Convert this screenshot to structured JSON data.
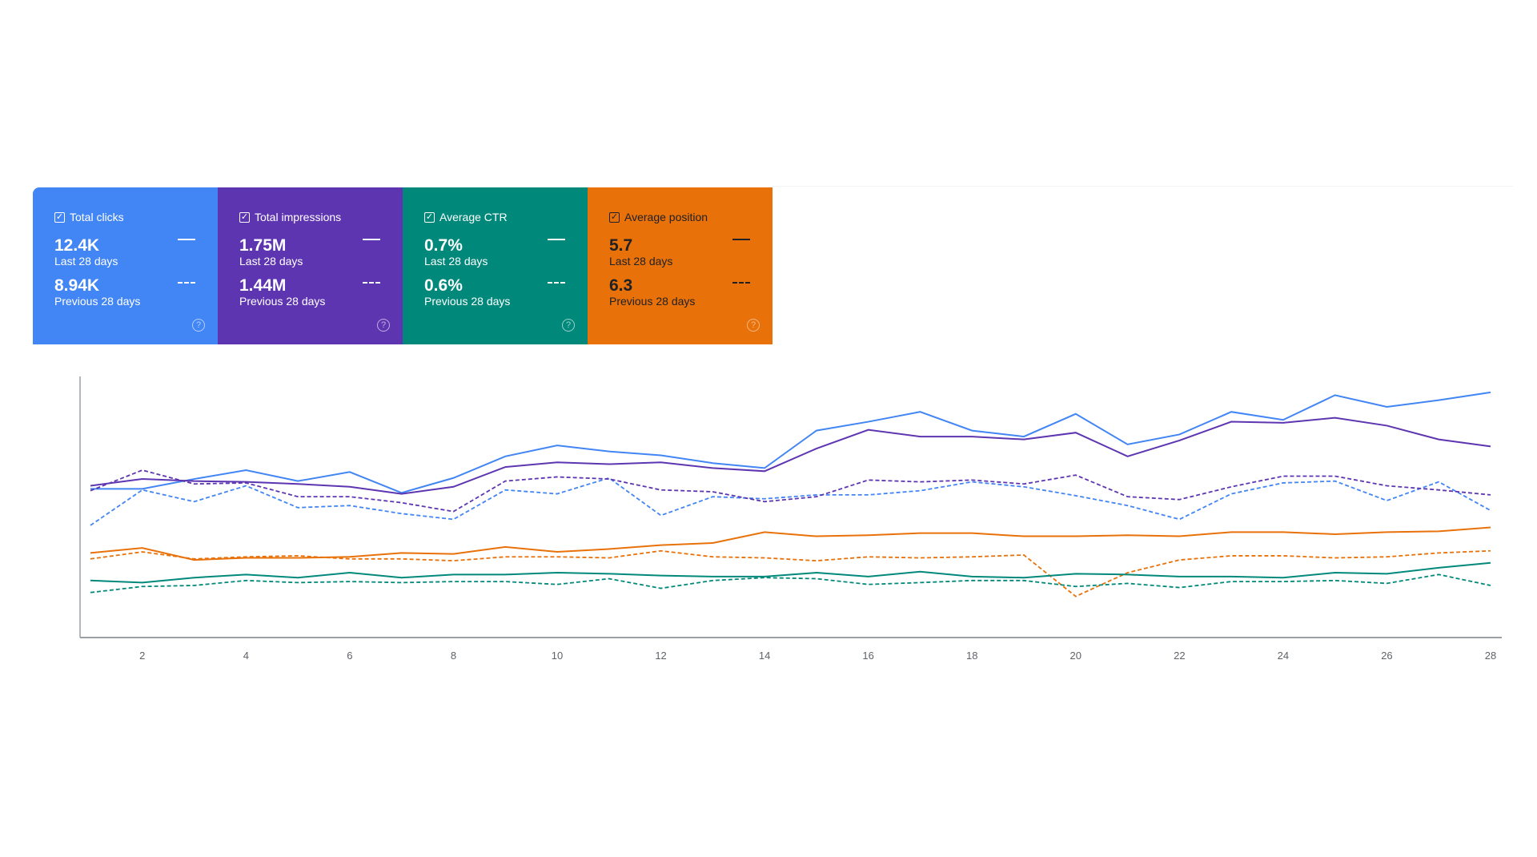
{
  "cards": [
    {
      "label": "Total clicks",
      "current": "12.4K",
      "current_label": "Last 28 days",
      "previous": "8.94K",
      "previous_label": "Previous 28 days",
      "color": "#4285f4",
      "checked": true
    },
    {
      "label": "Total impressions",
      "current": "1.75M",
      "current_label": "Last 28 days",
      "previous": "1.44M",
      "previous_label": "Previous 28 days",
      "color": "#5e35b1",
      "checked": true
    },
    {
      "label": "Average CTR",
      "current": "0.7%",
      "current_label": "Last 28 days",
      "previous": "0.6%",
      "previous_label": "Previous 28 days",
      "color": "#00897b",
      "checked": true
    },
    {
      "label": "Average position",
      "current": "5.7",
      "current_label": "Last 28 days",
      "previous": "6.3",
      "previous_label": "Previous 28 days",
      "color": "#e8710a",
      "checked": true
    }
  ],
  "icons": {
    "checkbox": "checkbox-checked-icon",
    "help": "help-circle-icon"
  },
  "chart_data": {
    "type": "line",
    "x": [
      1,
      2,
      3,
      4,
      5,
      6,
      7,
      8,
      9,
      10,
      11,
      12,
      13,
      14,
      15,
      16,
      17,
      18,
      19,
      20,
      21,
      22,
      23,
      24,
      25,
      26,
      27,
      28
    ],
    "xticks": [
      "2",
      "4",
      "6",
      "8",
      "10",
      "12",
      "14",
      "16",
      "18",
      "20",
      "22",
      "24",
      "26",
      "28"
    ],
    "ylim": [
      0,
      100
    ],
    "y_axis_labels": "none (relative scale)",
    "grid": false,
    "series": [
      {
        "metric": "clicks",
        "period": "current",
        "style": "solid",
        "color": "#4285f4",
        "values": [
          56.8,
          56.8,
          60.6,
          64.0,
          59.8,
          63.3,
          55.3,
          61.0,
          69.3,
          73.5,
          71.2,
          69.7,
          66.7,
          64.8,
          79.2,
          82.6,
          86.4,
          79.2,
          76.9,
          85.6,
          73.9,
          77.7,
          86.4,
          83.3,
          92.8,
          88.3,
          90.9,
          93.9
        ]
      },
      {
        "metric": "impressions",
        "period": "current",
        "style": "solid",
        "color": "#5e35b1",
        "values": [
          58.0,
          60.6,
          59.8,
          59.5,
          58.7,
          57.6,
          54.9,
          57.6,
          65.2,
          67.0,
          66.3,
          67.0,
          64.8,
          63.6,
          72.3,
          79.5,
          76.9,
          76.9,
          75.8,
          78.4,
          69.3,
          75.4,
          82.6,
          82.2,
          84.1,
          81.1,
          75.8,
          73.1
        ]
      },
      {
        "metric": "clicks",
        "period": "previous",
        "style": "dashed",
        "color": "#4285f4",
        "values": [
          42.8,
          56.4,
          51.9,
          58.0,
          49.6,
          50.4,
          47.3,
          45.1,
          56.4,
          54.9,
          61.0,
          46.6,
          53.8,
          53.0,
          54.5,
          54.5,
          56.1,
          59.5,
          57.6,
          54.2,
          50.4,
          45.1,
          54.9,
          59.1,
          59.8,
          52.3,
          59.5,
          48.5
        ]
      },
      {
        "metric": "impressions",
        "period": "previous",
        "style": "dashed",
        "color": "#5e35b1",
        "values": [
          56.1,
          64.0,
          58.7,
          59.1,
          53.8,
          53.8,
          51.5,
          48.1,
          59.8,
          61.4,
          60.6,
          56.4,
          55.7,
          51.9,
          53.8,
          60.2,
          59.5,
          60.2,
          58.7,
          62.1,
          53.8,
          52.7,
          57.6,
          61.7,
          61.7,
          58.0,
          56.4,
          54.5
        ]
      },
      {
        "metric": "position",
        "period": "current",
        "style": "solid",
        "color": "#e8710a",
        "values": [
          32.2,
          34.1,
          29.5,
          30.3,
          30.3,
          30.7,
          32.2,
          31.8,
          34.5,
          32.6,
          33.7,
          35.2,
          36.0,
          40.2,
          38.6,
          39.0,
          39.8,
          39.8,
          38.6,
          38.6,
          39.0,
          38.6,
          40.2,
          40.2,
          39.4,
          40.2,
          40.5,
          42.0
        ]
      },
      {
        "metric": "position",
        "period": "previous",
        "style": "dashed",
        "color": "#e8710a",
        "values": [
          29.9,
          32.6,
          29.9,
          30.7,
          31.1,
          29.9,
          29.9,
          29.2,
          30.7,
          30.7,
          30.3,
          33.0,
          30.7,
          30.3,
          29.2,
          30.7,
          30.3,
          30.7,
          31.4,
          15.5,
          24.6,
          29.5,
          31.1,
          31.1,
          30.3,
          30.7,
          32.2,
          33.0
        ]
      },
      {
        "metric": "ctr",
        "period": "current",
        "style": "solid",
        "color": "#00897b",
        "values": [
          21.6,
          20.8,
          22.7,
          23.9,
          22.7,
          24.6,
          22.7,
          23.9,
          23.9,
          24.6,
          24.2,
          23.5,
          23.1,
          23.1,
          24.6,
          23.1,
          25.0,
          23.1,
          22.7,
          24.2,
          23.9,
          23.1,
          23.1,
          22.7,
          24.6,
          24.2,
          26.5,
          28.4
        ]
      },
      {
        "metric": "ctr",
        "period": "previous",
        "style": "dashed",
        "color": "#00897b",
        "values": [
          17.0,
          19.3,
          19.7,
          21.6,
          20.8,
          21.2,
          20.8,
          21.2,
          21.2,
          20.1,
          22.3,
          18.6,
          21.6,
          22.7,
          22.3,
          20.1,
          20.8,
          21.6,
          21.6,
          19.3,
          20.5,
          18.9,
          21.2,
          21.2,
          21.6,
          20.5,
          23.9,
          19.7
        ]
      }
    ]
  }
}
